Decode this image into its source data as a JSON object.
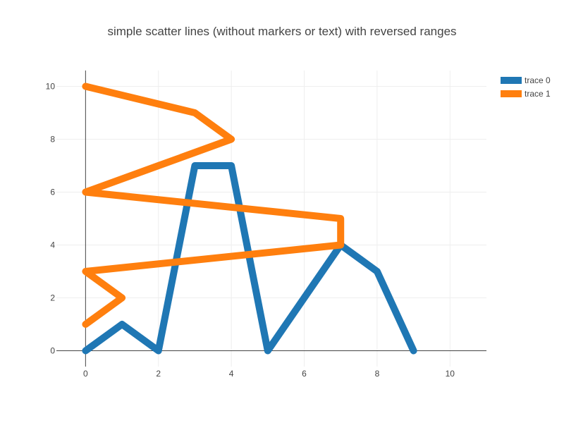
{
  "chart_data": {
    "type": "line",
    "title": "simple scatter lines (without markers or text) with reversed ranges",
    "xlabel": "",
    "ylabel": "",
    "xlim": [
      -0.8,
      11
    ],
    "ylim": [
      10.6,
      -0.6
    ],
    "x_ticks": [
      0,
      2,
      4,
      6,
      8,
      10
    ],
    "y_ticks": [
      0,
      2,
      4,
      6,
      8,
      10
    ],
    "x_tick_labels": [
      "0",
      "2",
      "4",
      "6",
      "8",
      "10"
    ],
    "y_tick_labels": [
      "0",
      "2",
      "4",
      "6",
      "8",
      "10"
    ],
    "y_reversed": true,
    "grid": true,
    "legend_position": "top-right",
    "series": [
      {
        "name": "trace 0",
        "color": "#1f77b4",
        "x": [
          0,
          1,
          2,
          3,
          4,
          5,
          6,
          7,
          8,
          9
        ],
        "y": [
          0,
          1,
          0,
          7,
          7,
          0,
          2,
          4,
          3,
          0
        ]
      },
      {
        "name": "trace 1",
        "color": "#ff7f0e",
        "x": [
          0,
          1,
          0,
          7,
          7,
          0,
          2,
          4,
          3,
          0
        ],
        "y": [
          1,
          2,
          3,
          4,
          5,
          6,
          7,
          8,
          9,
          10
        ]
      }
    ]
  }
}
